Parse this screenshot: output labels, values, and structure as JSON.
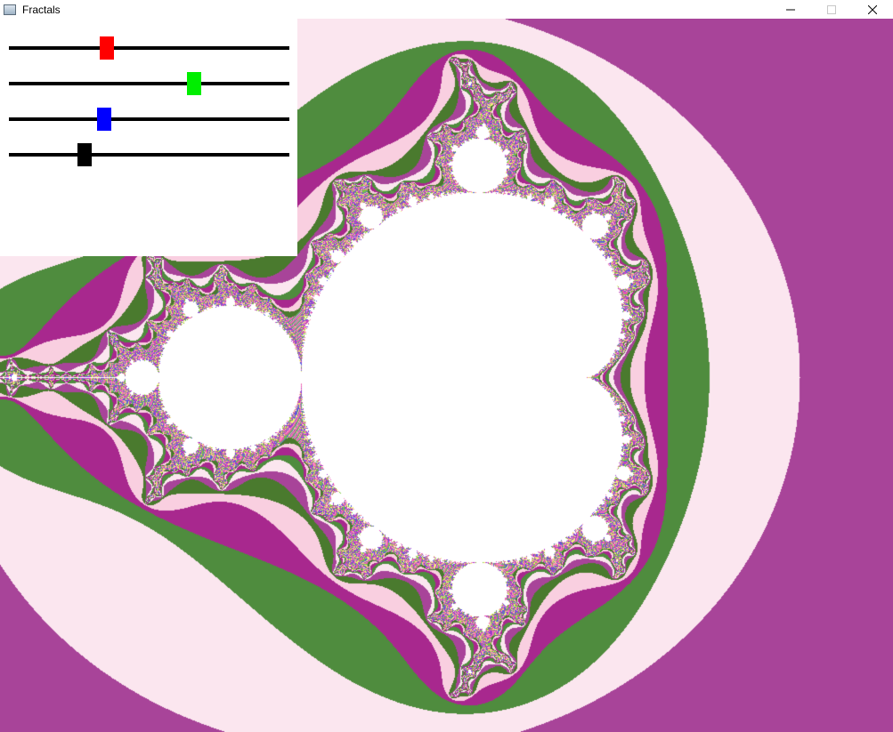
{
  "window": {
    "title": "Fractals",
    "icon": "app-window-icon",
    "controls": {
      "minimize": "—",
      "maximize": "☐",
      "close": "✕"
    }
  },
  "fractal": {
    "type": "mandelbrot",
    "palette": [
      "#a84499",
      "#fbe6ef",
      "#4f8c3e",
      "#a8288e",
      "#f9cfe0",
      "#ffffff"
    ]
  },
  "sliders": [
    {
      "name": "red",
      "color": "#ff0000",
      "value": 0.35
    },
    {
      "name": "green",
      "color": "#00ee00",
      "value": 0.66
    },
    {
      "name": "blue",
      "color": "#0000ff",
      "value": 0.34
    },
    {
      "name": "black",
      "color": "#000000",
      "value": 0.27
    }
  ]
}
